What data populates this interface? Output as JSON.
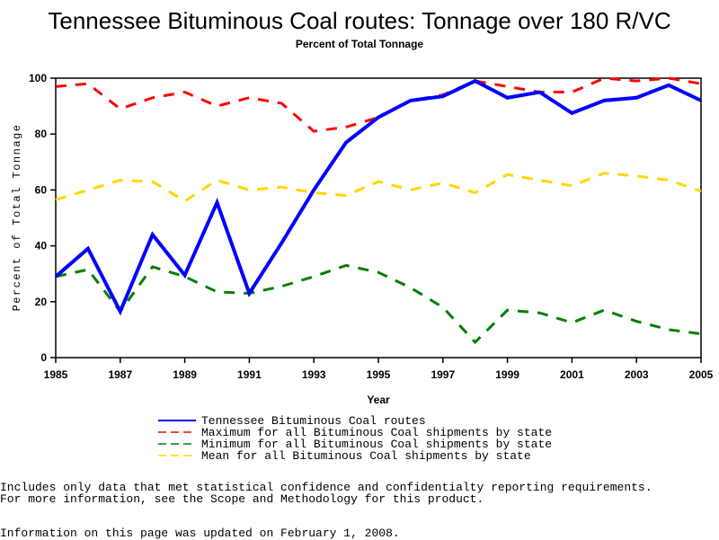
{
  "chart_data": {
    "type": "line",
    "title": "Tennessee Bituminous Coal routes: Tonnage over 180 R/VC",
    "subtitle": "Percent of Total Tonnage",
    "xlabel": "Year",
    "ylabel": "Percent of Total Tonnage",
    "xlim": [
      1985,
      2005
    ],
    "ylim": [
      0,
      100
    ],
    "xticks": [
      "1985",
      "1987",
      "1989",
      "1991",
      "1993",
      "1995",
      "1997",
      "1999",
      "2001",
      "2003",
      "2005"
    ],
    "yticks": [
      "0",
      "20",
      "40",
      "60",
      "80",
      "100"
    ],
    "x": [
      1985,
      1986,
      1987,
      1988,
      1989,
      1990,
      1991,
      1992,
      1993,
      1994,
      1995,
      1996,
      1997,
      1998,
      1999,
      2000,
      2001,
      2002,
      2003,
      2004,
      2005
    ],
    "series": [
      {
        "name": "Tennessee Bituminous Coal routes",
        "color": "#0000ff",
        "dash": "solid",
        "values": [
          29,
          39,
          16.5,
          44,
          29.5,
          55.5,
          23,
          41,
          60,
          77,
          86,
          92,
          93.5,
          99,
          93,
          95,
          87.5,
          92,
          93,
          97.5,
          92
        ]
      },
      {
        "name": "Maximum for all Bituminous Coal shipments by state",
        "color": "#ff0000",
        "dash": "dashed",
        "values": [
          97,
          98,
          89,
          93,
          95,
          90,
          93,
          91,
          81,
          82.5,
          86,
          92,
          94,
          99,
          97,
          95,
          95,
          100,
          99,
          100,
          98
        ]
      },
      {
        "name": "Minimum for all Bituminous Coal shipments by state",
        "color": "#008000",
        "dash": "dashed",
        "values": [
          29,
          31.5,
          16.5,
          32.5,
          29,
          23.5,
          23,
          25.5,
          29,
          33,
          30.5,
          25,
          18,
          5.5,
          17,
          16,
          12.5,
          17,
          13,
          10,
          8.5
        ]
      },
      {
        "name": "Mean for all Bituminous Coal shipments by state",
        "color": "#ffd700",
        "dash": "dashed",
        "values": [
          56.5,
          60,
          63.5,
          63,
          56,
          63.5,
          60,
          61,
          59,
          58,
          63,
          60,
          62.5,
          59,
          65.5,
          63.5,
          61.5,
          66,
          65,
          63.5,
          59.5
        ]
      }
    ],
    "legend": "bottom"
  },
  "footnotes": [
    "Includes only data that met statistical confidence and confidentialty reporting requirements.",
    "For more information, see the Scope and Methodology for this product.",
    "Information on this page was updated on February 1, 2008."
  ]
}
